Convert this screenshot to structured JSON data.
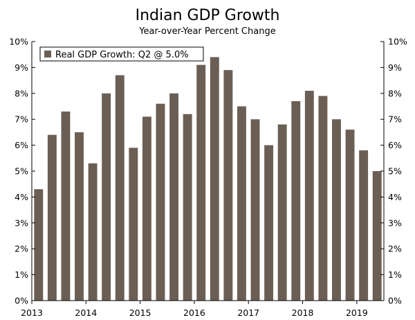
{
  "chart_data": {
    "type": "bar",
    "title": "Indian GDP Growth",
    "subtitle": "Year-over-Year Percent Change",
    "series": [
      {
        "name": "Real GDP Growth: Q2 @ 5.0%",
        "color": "#6b5f55",
        "values": [
          4.3,
          6.4,
          7.3,
          6.5,
          5.3,
          8.0,
          8.7,
          5.9,
          7.1,
          7.6,
          8.0,
          7.2,
          9.1,
          9.4,
          8.9,
          7.5,
          7.0,
          6.0,
          6.8,
          7.7,
          8.1,
          7.9,
          7.0,
          6.6,
          5.8,
          5.0
        ]
      }
    ],
    "x_tick_labels": [
      "2013",
      "2014",
      "2015",
      "2016",
      "2017",
      "2018",
      "2019"
    ],
    "x_tick_positions": [
      0,
      4,
      8,
      12,
      16,
      20,
      24
    ],
    "y_tick_labels": [
      "0%",
      "1%",
      "2%",
      "3%",
      "4%",
      "5%",
      "6%",
      "7%",
      "8%",
      "9%",
      "10%"
    ],
    "ylim": [
      0,
      10
    ],
    "xlabel": "",
    "ylabel": "",
    "legend_position": "top-left",
    "grid": false
  }
}
